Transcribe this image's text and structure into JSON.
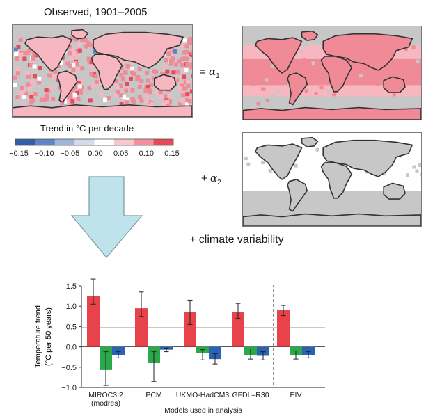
{
  "observed_title": "Observed, 1901–2005",
  "colorbar": {
    "title": "Trend in °C per decade",
    "ticks": [
      "−0.15",
      "−0.10",
      "−0.05",
      "0.00",
      "0.05",
      "0.10",
      "0.15"
    ],
    "colors": [
      "#2f5faa",
      "#5f86c2",
      "#9fb4d8",
      "#d3dae9",
      "#ffffff",
      "#f9c8cf",
      "#f4909c",
      "#e8485a"
    ]
  },
  "equation": {
    "alpha1_prefix": "= ",
    "alpha1_symbol": "α",
    "alpha1_sub": "1",
    "alpha2_prefix": "+ ",
    "alpha2_symbol": "α",
    "alpha2_sub": "2",
    "climate_variability": "+ climate variability"
  },
  "map_colors": {
    "ocean": "#c7c7c7",
    "land": "#ffffff",
    "warm": "#f08a96",
    "warm_light": "#f6b7c0",
    "warm_strong": "#e64b5c",
    "coast": "#333333"
  },
  "chart_data": {
    "type": "bar",
    "xlabel": "Models used in analysis",
    "ylabel_line1": "Temperature trend",
    "ylabel_line2": "(°C per 50 years)",
    "ylim": [
      -1.0,
      1.5
    ],
    "yticks": [
      "−1.0",
      "−0.5",
      "0.0",
      "0.5",
      "1.0",
      "1.5"
    ],
    "ytick_values": [
      -1.0,
      -0.5,
      0.0,
      0.5,
      1.0,
      1.5
    ],
    "reference_line": 0.47,
    "categories": [
      "MIROC3.2",
      "PCM",
      "UKMO-HadCM3",
      "GFDL–R30",
      "EIV"
    ],
    "category_sublabels": [
      "(modres)",
      "",
      "",
      "",
      ""
    ],
    "series_colors": [
      "#e8434b",
      "#2aa84a",
      "#2a62b5"
    ],
    "series": [
      {
        "values": [
          1.25,
          0.95,
          0.85,
          0.85,
          0.9
        ],
        "err_low": [
          1.05,
          0.75,
          0.55,
          0.7,
          0.77
        ],
        "err_high": [
          1.67,
          1.35,
          1.15,
          1.07,
          1.02
        ]
      },
      {
        "values": [
          -0.57,
          -0.4,
          -0.15,
          -0.2,
          -0.2
        ],
        "err_low": [
          -0.95,
          -0.85,
          -0.32,
          -0.3,
          -0.3
        ],
        "err_high": [
          -0.12,
          -0.12,
          -0.07,
          -0.05,
          -0.1
        ]
      },
      {
        "values": [
          -0.2,
          -0.07,
          -0.3,
          -0.22,
          -0.2
        ],
        "err_low": [
          -0.27,
          -0.12,
          -0.42,
          -0.32,
          -0.27
        ],
        "err_high": [
          -0.12,
          -0.03,
          -0.17,
          -0.12,
          -0.12
        ]
      }
    ]
  }
}
